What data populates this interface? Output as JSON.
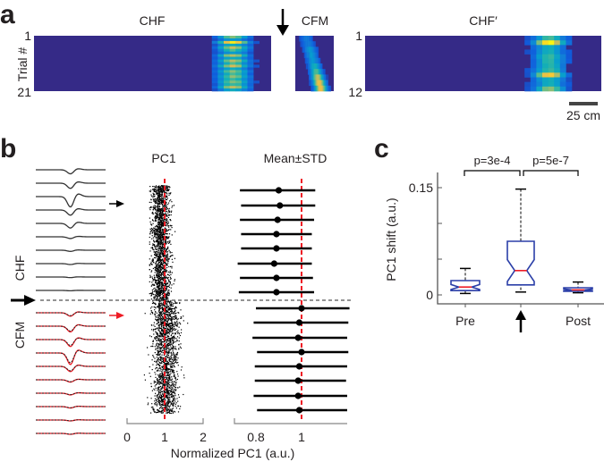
{
  "panel_labels": {
    "a": "a",
    "b": "b",
    "c": "c"
  },
  "chart_data": [
    {
      "type": "heatmap",
      "panel": "a",
      "ylabel": "Trial #",
      "scale_bar": "25 cm",
      "maps": [
        {
          "title": "CHF",
          "y_tick_first": "1",
          "y_tick_last": "21",
          "trials": 21,
          "peak_position": 0.84,
          "row_intensity": [
            0.6,
            0.3,
            0.95,
            0.4,
            0.7,
            0.5,
            0.3,
            0.7,
            0.4,
            0.7,
            0.5,
            0.75,
            0.4,
            0.6,
            0.5,
            0.6,
            0.5,
            0.6,
            0.5,
            0.7,
            0.4
          ]
        },
        {
          "title": "CFM",
          "y_tick_first": "",
          "y_tick_last": "",
          "trials": 10,
          "peak_position": 0.6,
          "row_intensity": [
            0.2,
            0.2,
            0.3,
            0.3,
            0.3,
            0.4,
            0.5,
            0.7,
            0.8,
            0.8
          ]
        },
        {
          "title": "CHF′",
          "y_tick_first": "1",
          "y_tick_last": "12",
          "trials": 12,
          "peak_position": 0.78,
          "row_intensity": [
            0.5,
            0.95,
            0.4,
            0.4,
            0.5,
            0.45,
            0.45,
            0.5,
            0.85,
            0.4,
            0.4,
            0.6
          ]
        }
      ]
    },
    {
      "type": "scatter",
      "panel": "b",
      "title": "PC1",
      "xlabel": "Normalized PC1 (a.u.)",
      "xlim": [
        0,
        2
      ],
      "x_ticks": [
        "0",
        "1",
        "2"
      ],
      "reference_line": 1,
      "group_labels": {
        "pre": "CHF",
        "post": "CFM"
      },
      "pre_center": 0.88,
      "post_center": 1.0,
      "spread": 0.17
    },
    {
      "type": "errorbar",
      "panel": "b",
      "title": "Mean±STD",
      "x_ticks": [
        "0.8",
        "1"
      ],
      "reference_line": 1,
      "CHF": [
        {
          "mean": 0.9,
          "lo": 0.73,
          "hi": 1.06
        },
        {
          "mean": 0.905,
          "lo": 0.735,
          "hi": 1.06
        },
        {
          "mean": 0.895,
          "lo": 0.73,
          "hi": 1.055
        },
        {
          "mean": 0.89,
          "lo": 0.735,
          "hi": 1.045
        },
        {
          "mean": 0.89,
          "lo": 0.735,
          "hi": 1.045
        },
        {
          "mean": 0.88,
          "lo": 0.72,
          "hi": 1.045
        },
        {
          "mean": 0.89,
          "lo": 0.73,
          "hi": 1.05
        },
        {
          "mean": 0.89,
          "lo": 0.725,
          "hi": 1.055
        }
      ],
      "CFM": [
        {
          "mean": 1.0,
          "lo": 0.8,
          "hi": 1.21
        },
        {
          "mean": 0.99,
          "lo": 0.79,
          "hi": 1.205
        },
        {
          "mean": 0.985,
          "lo": 0.785,
          "hi": 1.2
        },
        {
          "mean": 1.0,
          "lo": 0.805,
          "hi": 1.205
        },
        {
          "mean": 0.99,
          "lo": 0.795,
          "hi": 1.2
        },
        {
          "mean": 0.985,
          "lo": 0.795,
          "hi": 1.195
        },
        {
          "mean": 0.985,
          "lo": 0.79,
          "hi": 1.2
        },
        {
          "mean": 0.99,
          "lo": 0.805,
          "hi": 1.2
        }
      ]
    },
    {
      "type": "line",
      "panel": "b",
      "description_label": "waveforms",
      "CHF_dip": [
        0.35,
        0.45,
        0.9,
        0.45,
        0.4,
        0.15,
        0.1,
        0.08,
        0.05,
        0.03
      ],
      "CFM_dip": [
        0.3,
        0.5,
        0.6,
        1.0,
        0.45,
        0.2,
        0.15,
        0.12,
        0.08,
        0.08
      ]
    },
    {
      "type": "box",
      "panel": "c",
      "ylabel": "PC1 shift (a.u.)",
      "ylim": [
        0,
        0.15
      ],
      "y_ticks": [
        {
          "v": 0,
          "label": "0"
        },
        {
          "v": 0.05,
          "label": ""
        },
        {
          "v": 0.1,
          "label": ""
        },
        {
          "v": 0.15,
          "label": "0.15"
        }
      ],
      "categories": [
        "Pre",
        "",
        "Post"
      ],
      "boxes": [
        {
          "min": 0.002,
          "q1": 0.006,
          "median": 0.011,
          "q3": 0.02,
          "max": 0.037
        },
        {
          "min": 0.004,
          "q1": 0.014,
          "median": 0.034,
          "q3": 0.075,
          "max": 0.148
        },
        {
          "min": 0.003,
          "q1": 0.005,
          "median": 0.007,
          "q3": 0.01,
          "max": 0.018
        }
      ],
      "comparisons": [
        {
          "label": "p=3e-4"
        },
        {
          "label": "p=5e-7"
        }
      ],
      "colors": {
        "box": "#2b3fa8",
        "median": "#ee1c25"
      }
    }
  ]
}
